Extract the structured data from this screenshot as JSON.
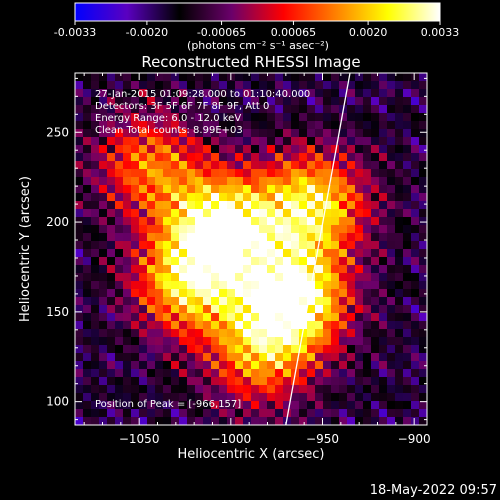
{
  "chart_data": {
    "type": "heatmap",
    "title": "Reconstructed RHESSI Image",
    "xlabel": "Heliocentric X (arcsec)",
    "ylabel": "Heliocentric Y (arcsec)",
    "xlim": [
      -1085,
      -893
    ],
    "ylim": [
      87,
      283
    ],
    "x_ticks": [
      -1050,
      -1000,
      -950,
      -900
    ],
    "x_tick_labels": [
      "−1050",
      "−1000",
      "−950",
      "−900"
    ],
    "y_ticks": [
      100,
      150,
      200,
      250
    ],
    "y_tick_labels": [
      "100",
      "150",
      "200",
      "250"
    ],
    "colorbar": {
      "range": [
        -0.0033,
        0.0033
      ],
      "ticks": [
        -0.0033,
        -0.002,
        -0.00065,
        0.00065,
        0.002,
        0.0033
      ],
      "tick_labels": [
        "-0.0033",
        "-0.0020",
        "-0.00065",
        "0.00065",
        "0.0020",
        "0.0033"
      ],
      "units_label": "(photons cm⁻² s⁻¹ asec⁻²)",
      "colormap": [
        "#0000ff",
        "#5a00c0",
        "#000000",
        "#6a006a",
        "#ff0000",
        "#ff8000",
        "#ffff00",
        "#ffffff"
      ]
    },
    "annotations": [
      "27-Jan-2015 01:09:28.000 to 01:10:40.000",
      "Detectors: 3F 5F 6F 7F 8F 9F, Att 0",
      "Energy Range: 6.0 - 12.0 keV",
      "Clean     Total counts: 8.99E+03"
    ],
    "peak_label": "Position of Peak = [-966,157]",
    "peak": [
      -966,
      157
    ],
    "emission_sources": [
      {
        "center": [
          -1005,
          197
        ],
        "peak_fraction": 0.95
      },
      {
        "center": [
          -955,
          210
        ],
        "peak_fraction": 0.8
      },
      {
        "center": [
          -966,
          157
        ],
        "peak_fraction": 1.0
      },
      {
        "center": [
          -1025,
          165
        ],
        "peak_fraction": 0.7
      },
      {
        "center": [
          -1045,
          232
        ],
        "peak_fraction": 0.55
      },
      {
        "center": [
          -985,
          125
        ],
        "peak_fraction": 0.55
      }
    ],
    "limb_line": [
      [
        -970,
        87
      ],
      [
        -935,
        283
      ]
    ],
    "grid": false
  },
  "footer": {
    "timestamp": "18-May-2022 09:57"
  }
}
